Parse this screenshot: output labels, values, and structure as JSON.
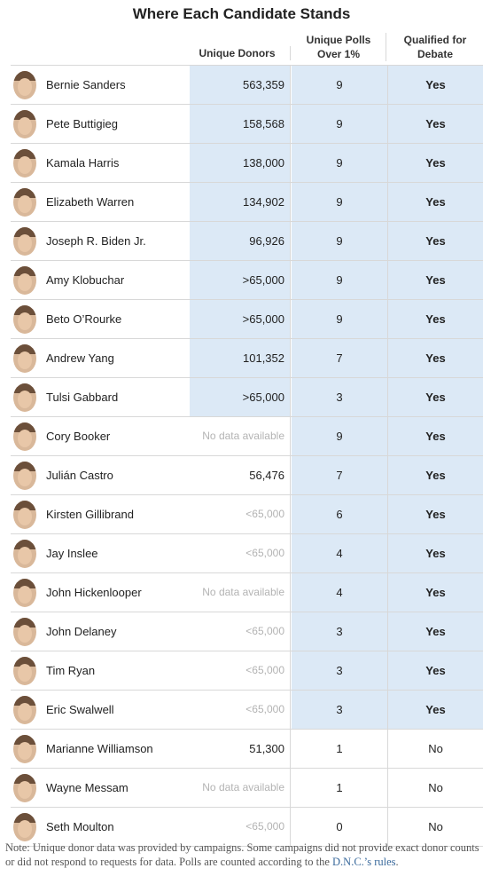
{
  "title": "Where Each Candidate Stands",
  "headers": {
    "donors": "Unique Donors",
    "polls_line1": "Unique Polls",
    "polls_line2": "Over 1%",
    "qual_line1": "Qualified for",
    "qual_line2": "Debate"
  },
  "colors": {
    "highlight": "#dce9f6",
    "link": "#3a6a9c"
  },
  "rows": [
    {
      "name": "Bernie Sanders",
      "donors": "563,359",
      "polls": "9",
      "qualified": "Yes",
      "donors_hl": true,
      "polls_hl": true,
      "qual_hl": true,
      "donors_style": "normal"
    },
    {
      "name": "Pete Buttigieg",
      "donors": "158,568",
      "polls": "9",
      "qualified": "Yes",
      "donors_hl": true,
      "polls_hl": true,
      "qual_hl": true,
      "donors_style": "normal"
    },
    {
      "name": "Kamala Harris",
      "donors": "138,000",
      "polls": "9",
      "qualified": "Yes",
      "donors_hl": true,
      "polls_hl": true,
      "qual_hl": true,
      "donors_style": "normal"
    },
    {
      "name": "Elizabeth Warren",
      "donors": "134,902",
      "polls": "9",
      "qualified": "Yes",
      "donors_hl": true,
      "polls_hl": true,
      "qual_hl": true,
      "donors_style": "normal"
    },
    {
      "name": "Joseph R. Biden Jr.",
      "donors": "96,926",
      "polls": "9",
      "qualified": "Yes",
      "donors_hl": true,
      "polls_hl": true,
      "qual_hl": true,
      "donors_style": "normal"
    },
    {
      "name": "Amy Klobuchar",
      "donors": ">65,000",
      "polls": "9",
      "qualified": "Yes",
      "donors_hl": true,
      "polls_hl": true,
      "qual_hl": true,
      "donors_style": "normal"
    },
    {
      "name": "Beto O’Rourke",
      "donors": ">65,000",
      "polls": "9",
      "qualified": "Yes",
      "donors_hl": true,
      "polls_hl": true,
      "qual_hl": true,
      "donors_style": "normal"
    },
    {
      "name": "Andrew Yang",
      "donors": "101,352",
      "polls": "7",
      "qualified": "Yes",
      "donors_hl": true,
      "polls_hl": true,
      "qual_hl": true,
      "donors_style": "normal"
    },
    {
      "name": "Tulsi Gabbard",
      "donors": ">65,000",
      "polls": "3",
      "qualified": "Yes",
      "donors_hl": true,
      "polls_hl": true,
      "qual_hl": true,
      "donors_style": "normal"
    },
    {
      "name": "Cory Booker",
      "donors": "No data available",
      "polls": "9",
      "qualified": "Yes",
      "donors_hl": false,
      "polls_hl": true,
      "qual_hl": true,
      "donors_style": "nodata"
    },
    {
      "name": "Julián Castro",
      "donors": "56,476",
      "polls": "7",
      "qualified": "Yes",
      "donors_hl": false,
      "polls_hl": true,
      "qual_hl": true,
      "donors_style": "normal"
    },
    {
      "name": "Kirsten Gillibrand",
      "donors": "<65,000",
      "polls": "6",
      "qualified": "Yes",
      "donors_hl": false,
      "polls_hl": true,
      "qual_hl": true,
      "donors_style": "nodata"
    },
    {
      "name": "Jay Inslee",
      "donors": "<65,000",
      "polls": "4",
      "qualified": "Yes",
      "donors_hl": false,
      "polls_hl": true,
      "qual_hl": true,
      "donors_style": "nodata"
    },
    {
      "name": "John Hickenlooper",
      "donors": "No data available",
      "polls": "4",
      "qualified": "Yes",
      "donors_hl": false,
      "polls_hl": true,
      "qual_hl": true,
      "donors_style": "nodata"
    },
    {
      "name": "John Delaney",
      "donors": "<65,000",
      "polls": "3",
      "qualified": "Yes",
      "donors_hl": false,
      "polls_hl": true,
      "qual_hl": true,
      "donors_style": "nodata"
    },
    {
      "name": "Tim Ryan",
      "donors": "<65,000",
      "polls": "3",
      "qualified": "Yes",
      "donors_hl": false,
      "polls_hl": true,
      "qual_hl": true,
      "donors_style": "nodata"
    },
    {
      "name": "Eric Swalwell",
      "donors": "<65,000",
      "polls": "3",
      "qualified": "Yes",
      "donors_hl": false,
      "polls_hl": true,
      "qual_hl": true,
      "donors_style": "nodata"
    },
    {
      "name": "Marianne Williamson",
      "donors": "51,300",
      "polls": "1",
      "qualified": "No",
      "donors_hl": false,
      "polls_hl": false,
      "qual_hl": false,
      "donors_style": "normal"
    },
    {
      "name": "Wayne Messam",
      "donors": "No data available",
      "polls": "1",
      "qualified": "No",
      "donors_hl": false,
      "polls_hl": false,
      "qual_hl": false,
      "donors_style": "nodata"
    },
    {
      "name": "Seth Moulton",
      "donors": "<65,000",
      "polls": "0",
      "qualified": "No",
      "donors_hl": false,
      "polls_hl": false,
      "qual_hl": false,
      "donors_style": "nodata"
    }
  ],
  "note": {
    "text": "Note: Unique donor data was provided by campaigns. Some campaigns did not provide exact donor counts or did not respond to requests for data. Polls are counted according to the ",
    "link": "D.N.C.’s rules",
    "end": "."
  }
}
